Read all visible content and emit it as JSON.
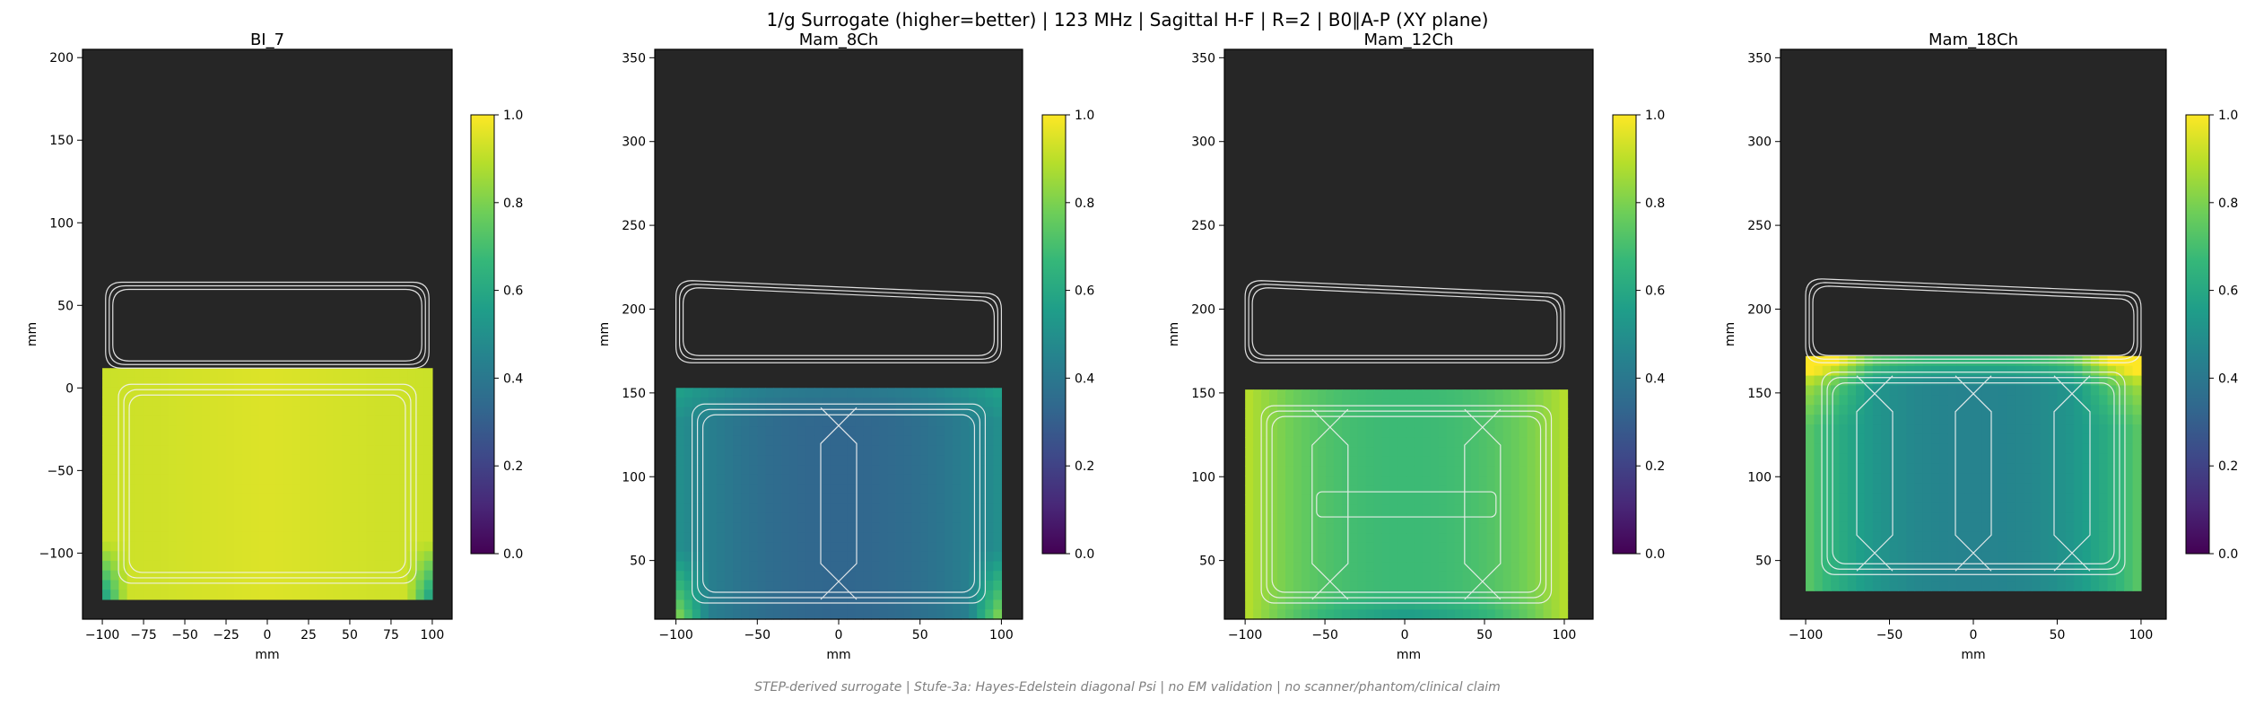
{
  "figure": {
    "title": "1/g Surrogate (higher=better) | 123 MHz | Sagittal H-F | R=2 | B0∥A-P (XY plane)",
    "footer": "STEP-derived surrogate | Stufe-3a: Hayes-Edelstein diagonal Psi | no EM validation | no scanner/phantom/clinical claim"
  },
  "colors": {
    "background_fill": "#262626",
    "coil_outline": "#f2f2f2",
    "colormap": "viridis",
    "colormap_stops": [
      "#440154",
      "#482878",
      "#3e4989",
      "#31688e",
      "#26828e",
      "#1f9e89",
      "#35b779",
      "#6ece58",
      "#b5de2b",
      "#fde725"
    ]
  },
  "chart_data": [
    {
      "type": "heatmap",
      "title": "BI_7",
      "xlabel": "mm",
      "ylabel": "mm",
      "xlim": [
        -112,
        112
      ],
      "ylim": [
        -140,
        205
      ],
      "xticks": [
        -100,
        -75,
        -50,
        -25,
        0,
        25,
        50,
        75,
        100
      ],
      "yticks": [
        -100,
        -50,
        0,
        50,
        100,
        150,
        200
      ],
      "field_extent": {
        "x": [
          -100,
          100
        ],
        "y": [
          -128,
          12
        ]
      },
      "field_summary": "mostly uniform ~0.95, lower (~0.6) at bottom corners",
      "field_levels": {
        "center": 0.95,
        "edges": 0.93,
        "bottom_corners": 0.55
      },
      "colorbar": {
        "range": [
          0.0,
          1.0
        ],
        "ticks": [
          "0.0",
          "0.2",
          "0.4",
          "0.6",
          "0.8",
          "1.0"
        ]
      },
      "coil_outline_regions": [
        {
          "x": [
            -98,
            98
          ],
          "y": [
            12,
            64
          ]
        }
      ]
    },
    {
      "type": "heatmap",
      "title": "Mam_8Ch",
      "xlabel": "mm",
      "ylabel": "mm",
      "xlim": [
        -113,
        113
      ],
      "ylim": [
        15,
        355
      ],
      "xticks": [
        -100,
        -50,
        0,
        50,
        100
      ],
      "yticks": [
        50,
        100,
        150,
        200,
        250,
        300,
        350
      ],
      "field_extent": {
        "x": [
          -100,
          100
        ],
        "y": [
          15,
          153
        ]
      },
      "field_summary": "low (~0.35) centre, higher toward sides and corners",
      "field_levels": {
        "center": 0.33,
        "sides": 0.5,
        "bottom_corners": 0.85
      },
      "colorbar": {
        "range": [
          0.0,
          1.0
        ],
        "ticks": [
          "0.0",
          "0.2",
          "0.4",
          "0.6",
          "0.8",
          "1.0"
        ]
      },
      "coil_outline_regions": [
        {
          "x": [
            -100,
            100
          ],
          "y": [
            168,
            217
          ]
        }
      ]
    },
    {
      "type": "heatmap",
      "title": "Mam_12Ch",
      "xlabel": "mm",
      "ylabel": "mm",
      "xlim": [
        -113,
        118
      ],
      "ylim": [
        15,
        355
      ],
      "xticks": [
        -100,
        -50,
        0,
        50,
        100
      ],
      "yticks": [
        50,
        100,
        150,
        200,
        250,
        300,
        350
      ],
      "field_extent": {
        "x": [
          -100,
          102
        ],
        "y": [
          15,
          152
        ]
      },
      "field_summary": "moderate (~0.7) centre, high (~0.9) toward left/right edges",
      "field_levels": {
        "center": 0.68,
        "sides": 0.9,
        "bottom_corners": 0.55
      },
      "colorbar": {
        "range": [
          0.0,
          1.0
        ],
        "ticks": [
          "0.0",
          "0.2",
          "0.4",
          "0.6",
          "0.8",
          "1.0"
        ]
      },
      "coil_outline_regions": [
        {
          "x": [
            -100,
            100
          ],
          "y": [
            168,
            217
          ]
        }
      ]
    },
    {
      "type": "heatmap",
      "title": "Mam_18Ch",
      "xlabel": "mm",
      "ylabel": "mm",
      "xlim": [
        -115,
        115
      ],
      "ylim": [
        15,
        355
      ],
      "xticks": [
        -100,
        -50,
        0,
        50,
        100
      ],
      "yticks": [
        50,
        100,
        150,
        200,
        250,
        300,
        350
      ],
      "field_extent": {
        "x": [
          -100,
          100
        ],
        "y": [
          32,
          172
        ]
      },
      "field_summary": "low-moderate (~0.45) centre, high (~0.9) at top corners and edges",
      "field_levels": {
        "center": 0.45,
        "sides": 0.75,
        "top_corners": 0.95
      },
      "colorbar": {
        "range": [
          0.0,
          1.0
        ],
        "ticks": [
          "0.0",
          "0.2",
          "0.4",
          "0.6",
          "0.8",
          "1.0"
        ]
      },
      "coil_outline_regions": [
        {
          "x": [
            -100,
            100
          ],
          "y": [
            168,
            218
          ]
        }
      ]
    }
  ]
}
